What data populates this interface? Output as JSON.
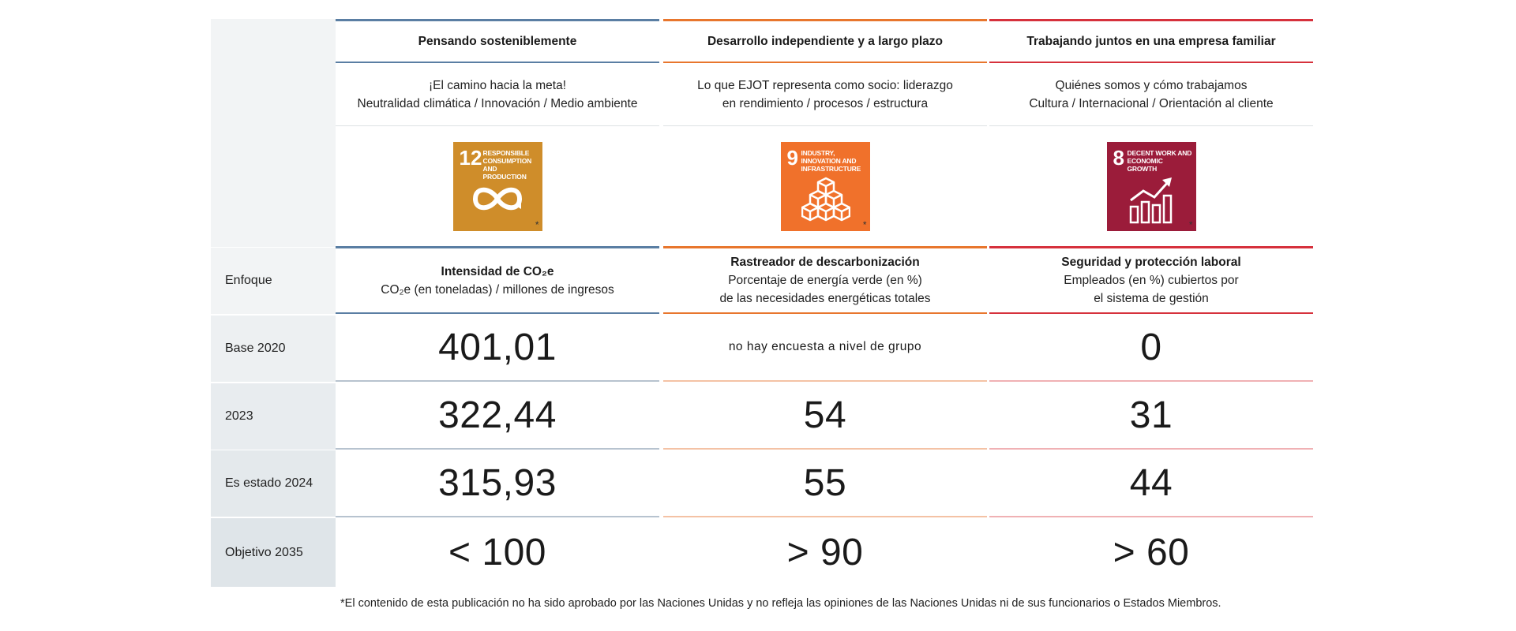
{
  "rows": {
    "focus": "Enfoque",
    "base": "Base 2020",
    "y2023": "2023",
    "status": "Es estado 2024",
    "target": "Objetivo 2035"
  },
  "columns": [
    {
      "header": "Pensando sosteniblemente",
      "sub_line1": "¡El camino hacia la meta!",
      "sub_line2": "Neutralidad climática / Innovación / Medio ambiente",
      "sdg": {
        "number": "12",
        "title": "RESPONSIBLE CONSUMPTION AND PRODUCTION",
        "color": "#cf8d2a",
        "icon": "infinity-icon",
        "star": "*"
      },
      "focus_title": "Intensidad de CO₂e",
      "focus_line1": "CO₂e (en toneladas) / millones de ingresos",
      "focus_line2": "",
      "base": "401,01",
      "y2023": "322,44",
      "status": "315,93",
      "target": "< 100",
      "accent": "#5a7ea3"
    },
    {
      "header": "Desarrollo independiente y a largo plazo",
      "sub_line1": "Lo que EJOT representa como socio: liderazgo",
      "sub_line2": "en rendimiento / procesos / estructura",
      "sdg": {
        "number": "9",
        "title": "INDUSTRY, INNOVATION AND INFRASTRUCTURE",
        "color": "#f0712b",
        "icon": "cubes-icon",
        "star": "*"
      },
      "focus_title": "Rastreador de descarbonización",
      "focus_line1": "Porcentaje de energía verde (en %)",
      "focus_line2": "de las necesidades energéticas totales",
      "base": "no hay encuesta a nivel de grupo",
      "y2023": "54",
      "status": "55",
      "target": "> 90",
      "accent": "#e8762d"
    },
    {
      "header": "Trabajando juntos en una empresa familiar",
      "sub_line1": "Quiénes somos y cómo trabajamos",
      "sub_line2": "Cultura / Internacional / Orientación al cliente",
      "sdg": {
        "number": "8",
        "title": "DECENT WORK AND ECONOMIC GROWTH",
        "color": "#9b1c3a",
        "icon": "growth-chart-icon",
        "star": "*"
      },
      "focus_title": "Seguridad y protección laboral",
      "focus_line1": "Empleados (en %) cubiertos por",
      "focus_line2": "el sistema de gestión",
      "base": "0",
      "y2023": "31",
      "status": "44",
      "target": "> 60",
      "accent": "#d6313c"
    }
  ],
  "footnote": "*El contenido de esta publicación no ha sido aprobado por las Naciones Unidas y no refleja las opiniones de las Naciones Unidas ni de sus funcionarios o Estados Miembros."
}
